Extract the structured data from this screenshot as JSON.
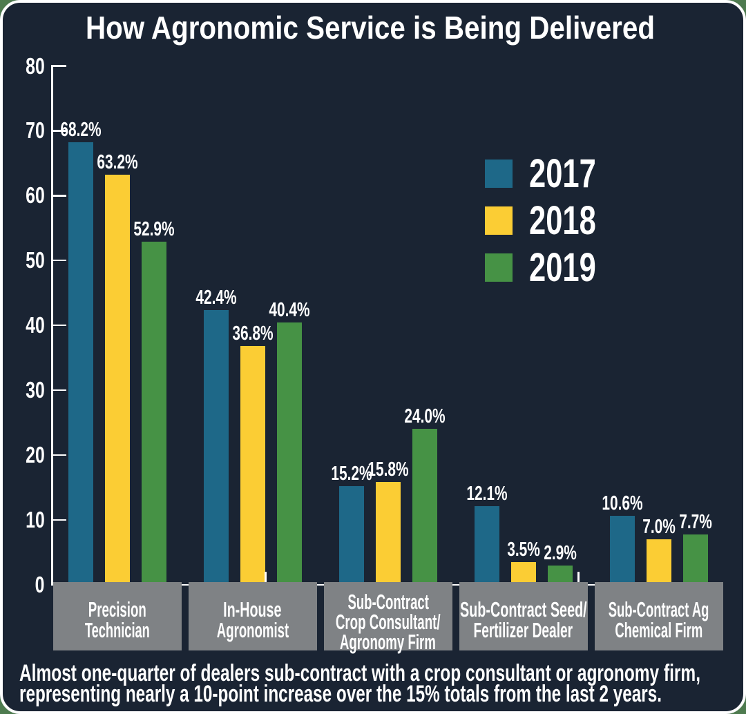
{
  "title": "How Agronomic Service is Being Delivered",
  "legend": {
    "items": [
      {
        "label": "2017",
        "color": "#1e6888"
      },
      {
        "label": "2018",
        "color": "#fbcd34"
      },
      {
        "label": "2019",
        "color": "#469245"
      }
    ]
  },
  "caption": {
    "line1": "Almost one-quarter of dealers sub-contract with a crop consultant or agronomy firm,",
    "line2": "representing nearly a 10-point increase over the 15% totals from the last 2 years."
  },
  "chart_data": {
    "type": "bar",
    "title": "How Agronomic Service is Being Delivered",
    "categories": [
      "Precision Technician",
      "In-House Agronomist",
      "Sub-Contract Crop Consultant/Agronomy Firm",
      "Sub-Contract Seed/Fertilizer Dealer",
      "Sub-Contract Ag Chemical Firm"
    ],
    "category_label_lines": [
      [
        "Precision",
        "Technician"
      ],
      [
        "In-House",
        "Agronomist"
      ],
      [
        "Sub-Contract",
        "Crop Consultant/",
        "Agronomy Firm"
      ],
      [
        "Sub-Contract Seed/",
        "Fertilizer Dealer"
      ],
      [
        "Sub-Contract Ag",
        "Chemical Firm"
      ]
    ],
    "series": [
      {
        "name": "2017",
        "color": "#1e6888",
        "values": [
          68.2,
          42.4,
          15.2,
          12.1,
          10.6
        ]
      },
      {
        "name": "2018",
        "color": "#fbcd34",
        "values": [
          63.2,
          36.8,
          15.8,
          3.5,
          7.0
        ]
      },
      {
        "name": "2019",
        "color": "#469245",
        "values": [
          52.9,
          40.4,
          24.0,
          2.9,
          7.7
        ]
      }
    ],
    "value_labels": [
      [
        "68.2%",
        "42.4%",
        "15.2%",
        "12.1%",
        "10.6%"
      ],
      [
        "63.2%",
        "36.8%",
        "15.8%",
        "3.5%",
        "7.0%"
      ],
      [
        "52.9%",
        "40.4%",
        "24.0%",
        "2.9%",
        "7.7%"
      ]
    ],
    "ylim": [
      0,
      80
    ],
    "ytick_step": 10,
    "ytick_labels": [
      "0",
      "10",
      "20",
      "30",
      "40",
      "50",
      "60",
      "70",
      "80"
    ],
    "grid": false,
    "legend_position": "upper right",
    "value_suffix": "%"
  },
  "colors": {
    "background": "#1a2433",
    "card_border": "#ffffff",
    "page_corners": "#4e7b4f",
    "category_box": "#7f8285",
    "text": "#ffffff",
    "series_2017": "#1e6888",
    "series_2018": "#fbcd34",
    "series_2019": "#469245"
  }
}
